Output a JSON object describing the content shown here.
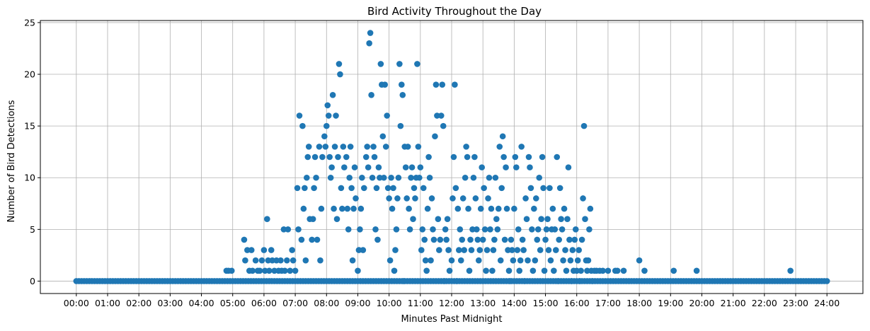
{
  "chart_data": {
    "type": "scatter",
    "title": "Bird Activity Throughout the Day",
    "xlabel": "Minutes Past Midnight",
    "ylabel": "Number of Bird Detections",
    "xlim": [
      -69,
      1509
    ],
    "ylim": [
      -1.2,
      25.2
    ],
    "grid": true,
    "marker_color": "#1f77b4",
    "x_ticks": {
      "values": [
        0,
        60,
        120,
        180,
        240,
        300,
        360,
        420,
        480,
        540,
        600,
        660,
        720,
        780,
        840,
        900,
        960,
        1020,
        1080,
        1140,
        1200,
        1260,
        1320,
        1380,
        1440
      ],
      "labels": [
        "00:00",
        "01:00",
        "02:00",
        "03:00",
        "04:00",
        "05:00",
        "06:00",
        "07:00",
        "08:00",
        "09:00",
        "10:00",
        "11:00",
        "12:00",
        "13:00",
        "14:00",
        "15:00",
        "16:00",
        "17:00",
        "18:00",
        "19:00",
        "20:00",
        "21:00",
        "22:00",
        "23:00",
        "24:00"
      ]
    },
    "y_ticks": {
      "values": [
        0,
        5,
        10,
        15,
        20,
        25
      ],
      "labels": [
        "0",
        "5",
        "10",
        "15",
        "20",
        "25"
      ]
    },
    "points": [
      [
        288,
        1
      ],
      [
        292,
        1
      ],
      [
        298,
        1
      ],
      [
        322,
        4
      ],
      [
        324,
        2
      ],
      [
        328,
        3
      ],
      [
        332,
        1
      ],
      [
        336,
        3
      ],
      [
        338,
        1
      ],
      [
        344,
        2
      ],
      [
        348,
        1
      ],
      [
        352,
        1
      ],
      [
        356,
        2
      ],
      [
        360,
        3
      ],
      [
        362,
        1
      ],
      [
        366,
        6
      ],
      [
        368,
        2
      ],
      [
        370,
        1
      ],
      [
        374,
        3
      ],
      [
        376,
        2
      ],
      [
        380,
        1
      ],
      [
        384,
        2
      ],
      [
        388,
        1
      ],
      [
        392,
        2
      ],
      [
        394,
        1
      ],
      [
        398,
        5
      ],
      [
        400,
        1
      ],
      [
        404,
        2
      ],
      [
        406,
        5
      ],
      [
        410,
        1
      ],
      [
        414,
        3
      ],
      [
        416,
        2
      ],
      [
        420,
        1
      ],
      [
        424,
        9
      ],
      [
        426,
        5
      ],
      [
        428,
        16
      ],
      [
        432,
        4
      ],
      [
        434,
        15
      ],
      [
        436,
        7
      ],
      [
        438,
        9
      ],
      [
        440,
        2
      ],
      [
        442,
        10
      ],
      [
        444,
        12
      ],
      [
        446,
        13
      ],
      [
        448,
        6
      ],
      [
        452,
        4
      ],
      [
        454,
        6
      ],
      [
        456,
        9
      ],
      [
        458,
        12
      ],
      [
        460,
        10
      ],
      [
        462,
        4
      ],
      [
        466,
        13
      ],
      [
        468,
        2
      ],
      [
        470,
        7
      ],
      [
        472,
        12
      ],
      [
        476,
        14
      ],
      [
        478,
        13
      ],
      [
        480,
        15
      ],
      [
        482,
        17
      ],
      [
        484,
        16
      ],
      [
        486,
        12
      ],
      [
        488,
        10
      ],
      [
        490,
        11
      ],
      [
        492,
        18
      ],
      [
        494,
        7
      ],
      [
        496,
        13
      ],
      [
        498,
        16
      ],
      [
        500,
        6
      ],
      [
        502,
        12
      ],
      [
        504,
        21
      ],
      [
        506,
        20
      ],
      [
        508,
        9
      ],
      [
        510,
        7
      ],
      [
        512,
        13
      ],
      [
        514,
        11
      ],
      [
        518,
        12
      ],
      [
        520,
        7
      ],
      [
        522,
        5
      ],
      [
        524,
        10
      ],
      [
        526,
        13
      ],
      [
        528,
        9
      ],
      [
        530,
        2
      ],
      [
        532,
        7
      ],
      [
        534,
        11
      ],
      [
        536,
        8
      ],
      [
        540,
        1
      ],
      [
        542,
        3
      ],
      [
        544,
        5
      ],
      [
        546,
        7
      ],
      [
        548,
        10
      ],
      [
        550,
        3
      ],
      [
        552,
        9
      ],
      [
        556,
        12
      ],
      [
        558,
        13
      ],
      [
        560,
        11
      ],
      [
        562,
        23
      ],
      [
        564,
        24
      ],
      [
        566,
        18
      ],
      [
        568,
        10
      ],
      [
        570,
        13
      ],
      [
        572,
        12
      ],
      [
        574,
        5
      ],
      [
        576,
        9
      ],
      [
        578,
        4
      ],
      [
        580,
        11
      ],
      [
        582,
        10
      ],
      [
        584,
        21
      ],
      [
        586,
        19
      ],
      [
        588,
        14
      ],
      [
        590,
        10
      ],
      [
        592,
        19
      ],
      [
        594,
        13
      ],
      [
        596,
        16
      ],
      [
        598,
        9
      ],
      [
        600,
        8
      ],
      [
        602,
        2
      ],
      [
        604,
        10
      ],
      [
        606,
        7
      ],
      [
        608,
        9
      ],
      [
        610,
        1
      ],
      [
        612,
        3
      ],
      [
        614,
        5
      ],
      [
        616,
        8
      ],
      [
        618,
        10
      ],
      [
        620,
        21
      ],
      [
        622,
        15
      ],
      [
        624,
        19
      ],
      [
        626,
        18
      ],
      [
        628,
        0
      ],
      [
        630,
        13
      ],
      [
        632,
        11
      ],
      [
        634,
        8
      ],
      [
        636,
        13
      ],
      [
        638,
        7
      ],
      [
        640,
        5
      ],
      [
        642,
        10
      ],
      [
        644,
        11
      ],
      [
        646,
        6
      ],
      [
        648,
        9
      ],
      [
        650,
        8
      ],
      [
        652,
        10
      ],
      [
        654,
        21
      ],
      [
        656,
        13
      ],
      [
        658,
        10
      ],
      [
        660,
        11
      ],
      [
        662,
        3
      ],
      [
        664,
        5
      ],
      [
        666,
        9
      ],
      [
        668,
        4
      ],
      [
        670,
        2
      ],
      [
        672,
        1
      ],
      [
        674,
        7
      ],
      [
        676,
        12
      ],
      [
        678,
        10
      ],
      [
        680,
        2
      ],
      [
        682,
        8
      ],
      [
        684,
        5
      ],
      [
        686,
        4
      ],
      [
        688,
        14
      ],
      [
        690,
        19
      ],
      [
        692,
        16
      ],
      [
        694,
        6
      ],
      [
        696,
        3
      ],
      [
        698,
        4
      ],
      [
        700,
        16
      ],
      [
        702,
        19
      ],
      [
        704,
        15
      ],
      [
        706,
        0
      ],
      [
        708,
        5
      ],
      [
        710,
        4
      ],
      [
        712,
        6
      ],
      [
        714,
        3
      ],
      [
        716,
        1
      ],
      [
        720,
        2
      ],
      [
        722,
        8
      ],
      [
        724,
        12
      ],
      [
        726,
        19
      ],
      [
        728,
        9
      ],
      [
        730,
        0
      ],
      [
        732,
        7
      ],
      [
        734,
        3
      ],
      [
        736,
        5
      ],
      [
        738,
        2
      ],
      [
        740,
        4
      ],
      [
        742,
        8
      ],
      [
        744,
        3
      ],
      [
        746,
        10
      ],
      [
        748,
        13
      ],
      [
        750,
        12
      ],
      [
        752,
        7
      ],
      [
        754,
        1
      ],
      [
        756,
        4
      ],
      [
        758,
        3
      ],
      [
        760,
        5
      ],
      [
        762,
        10
      ],
      [
        764,
        12
      ],
      [
        766,
        8
      ],
      [
        768,
        5
      ],
      [
        770,
        4
      ],
      [
        772,
        2
      ],
      [
        774,
        3
      ],
      [
        776,
        7
      ],
      [
        778,
        11
      ],
      [
        780,
        4
      ],
      [
        782,
        9
      ],
      [
        784,
        5
      ],
      [
        786,
        1
      ],
      [
        788,
        3
      ],
      [
        790,
        8
      ],
      [
        792,
        10
      ],
      [
        794,
        5
      ],
      [
        796,
        7
      ],
      [
        798,
        1
      ],
      [
        800,
        3
      ],
      [
        802,
        4
      ],
      [
        804,
        10
      ],
      [
        806,
        6
      ],
      [
        808,
        5
      ],
      [
        810,
        7
      ],
      [
        812,
        13
      ],
      [
        814,
        2
      ],
      [
        816,
        9
      ],
      [
        818,
        14
      ],
      [
        820,
        12
      ],
      [
        822,
        4
      ],
      [
        824,
        11
      ],
      [
        826,
        7
      ],
      [
        828,
        3
      ],
      [
        830,
        1
      ],
      [
        832,
        0
      ],
      [
        834,
        4
      ],
      [
        836,
        3
      ],
      [
        838,
        2
      ],
      [
        840,
        7
      ],
      [
        842,
        12
      ],
      [
        844,
        11
      ],
      [
        846,
        3
      ],
      [
        848,
        5
      ],
      [
        850,
        1
      ],
      [
        852,
        2
      ],
      [
        854,
        13
      ],
      [
        856,
        4
      ],
      [
        858,
        3
      ],
      [
        860,
        0
      ],
      [
        862,
        8
      ],
      [
        864,
        6
      ],
      [
        866,
        2
      ],
      [
        868,
        12
      ],
      [
        870,
        11
      ],
      [
        872,
        9
      ],
      [
        874,
        5
      ],
      [
        876,
        1
      ],
      [
        878,
        7
      ],
      [
        880,
        2
      ],
      [
        882,
        8
      ],
      [
        884,
        4
      ],
      [
        886,
        5
      ],
      [
        888,
        10
      ],
      [
        890,
        3
      ],
      [
        892,
        6
      ],
      [
        894,
        12
      ],
      [
        896,
        9
      ],
      [
        898,
        1
      ],
      [
        900,
        4
      ],
      [
        902,
        5
      ],
      [
        904,
        6
      ],
      [
        906,
        3
      ],
      [
        908,
        9
      ],
      [
        910,
        2
      ],
      [
        912,
        5
      ],
      [
        914,
        7
      ],
      [
        916,
        1
      ],
      [
        918,
        5
      ],
      [
        920,
        3
      ],
      [
        922,
        12
      ],
      [
        924,
        0
      ],
      [
        926,
        4
      ],
      [
        928,
        9
      ],
      [
        930,
        6
      ],
      [
        932,
        5
      ],
      [
        934,
        2
      ],
      [
        936,
        7
      ],
      [
        938,
        3
      ],
      [
        940,
        1
      ],
      [
        942,
        6
      ],
      [
        944,
        11
      ],
      [
        946,
        4
      ],
      [
        948,
        2
      ],
      [
        950,
        0
      ],
      [
        952,
        3
      ],
      [
        954,
        1
      ],
      [
        956,
        4
      ],
      [
        958,
        5
      ],
      [
        960,
        1
      ],
      [
        962,
        2
      ],
      [
        964,
        3
      ],
      [
        966,
        0
      ],
      [
        968,
        1
      ],
      [
        970,
        4
      ],
      [
        972,
        8
      ],
      [
        974,
        15
      ],
      [
        976,
        6
      ],
      [
        978,
        2
      ],
      [
        980,
        1
      ],
      [
        982,
        2
      ],
      [
        984,
        5
      ],
      [
        986,
        7
      ],
      [
        988,
        1
      ],
      [
        990,
        0
      ],
      [
        994,
        1
      ],
      [
        998,
        1
      ],
      [
        1004,
        1
      ],
      [
        1010,
        1
      ],
      [
        1020,
        1
      ],
      [
        1034,
        1
      ],
      [
        1038,
        1
      ],
      [
        1050,
        1
      ],
      [
        1080,
        2
      ],
      [
        1090,
        1
      ],
      [
        1146,
        1
      ],
      [
        1190,
        1
      ],
      [
        1370,
        1
      ]
    ]
  }
}
